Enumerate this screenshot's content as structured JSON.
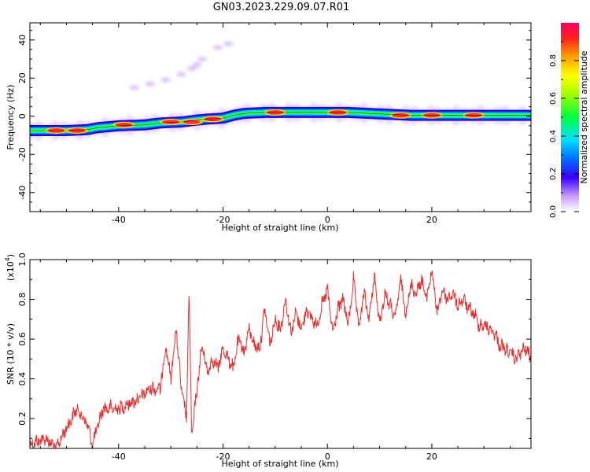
{
  "title": "GN03.2023.229.09.07.R01",
  "chart_data": [
    {
      "type": "heatmap",
      "xlabel": "Height of straight line (km)",
      "ylabel": "Frequency (Hz)",
      "xlim": [
        -57,
        39
      ],
      "ylim": [
        -50,
        49
      ],
      "xticks": [
        -40,
        -20,
        0,
        20
      ],
      "yticks": [
        -40,
        -20,
        0,
        20,
        40
      ],
      "colorbar": {
        "label": "Normalized spectral amplitude",
        "ticks": [
          "0.0",
          "0.2",
          "0.4",
          "0.6",
          "0.8"
        ],
        "range": [
          0,
          1
        ]
      },
      "ridge": {
        "description": "dominant frequency band vs height",
        "x": [
          -57,
          -50,
          -46,
          -44,
          -40,
          -35,
          -32,
          -28,
          -25,
          -23,
          -20,
          -18,
          -16,
          -12,
          -8,
          -4,
          0,
          4,
          8,
          12,
          16,
          20,
          24,
          28,
          32,
          36,
          38
        ],
        "y": [
          -7.5,
          -7.5,
          -7,
          -6,
          -5,
          -4.5,
          -3.5,
          -3,
          -2,
          -1.5,
          -1,
          0.5,
          1.5,
          2,
          2,
          2,
          2,
          2,
          1.5,
          1,
          0.5,
          0.5,
          0.5,
          0.5,
          0.5,
          0.5,
          0.5
        ]
      },
      "harmonic": {
        "x": [
          -37,
          -34,
          -31,
          -28,
          -26,
          -25,
          -24,
          -21,
          -19
        ],
        "y": [
          15,
          17,
          19,
          22,
          25,
          27,
          30,
          36,
          38
        ]
      },
      "hot_spots": [
        {
          "x": -52,
          "y": -7.5,
          "amp": 0.95
        },
        {
          "x": -48,
          "y": -7.5,
          "amp": 0.95
        },
        {
          "x": -39,
          "y": -4.5,
          "amp": 0.95
        },
        {
          "x": -30,
          "y": -3,
          "amp": 0.9
        },
        {
          "x": -26,
          "y": -3,
          "amp": 0.9
        },
        {
          "x": -22,
          "y": -1.5,
          "amp": 1.0
        },
        {
          "x": -10,
          "y": 2,
          "amp": 1.0
        },
        {
          "x": 2,
          "y": 2,
          "amp": 1.0
        },
        {
          "x": 14,
          "y": 0.5,
          "amp": 1.0
        },
        {
          "x": 20,
          "y": 0.5,
          "amp": 0.95
        },
        {
          "x": 28,
          "y": 0.5,
          "amp": 1.0
        }
      ]
    },
    {
      "type": "line",
      "xlabel": "Height of straight line (km)",
      "ylabel": "SNR (10 * v/v)",
      "y_multiplier": "(x10",
      "y_multiplier_exp": "4",
      "y_multiplier_close": ")",
      "xlim": [
        -57,
        39
      ],
      "ylim": [
        0.05,
        1.0
      ],
      "xticks": [
        -40,
        -20,
        0,
        20
      ],
      "yticks": [
        "0.2",
        "0.4",
        "0.6",
        "0.8",
        "1.0"
      ],
      "color": "#e83030",
      "series": [
        {
          "values_envelope": {
            "x": [
              -57,
              -54,
              -52,
              -50,
              -48,
              -46,
              -45,
              -43,
              -40,
              -36,
              -34,
              -32,
              -31,
              -30,
              -29,
              -28,
              -27,
              -26.5,
              -26,
              -25,
              -24,
              -23,
              -22,
              -21,
              -20,
              -19,
              -18,
              -17,
              -16,
              -15,
              -14,
              -13,
              -12,
              -11,
              -10,
              -9,
              -8,
              -7,
              -6,
              -5,
              -4,
              -3,
              -2,
              -1,
              0,
              1,
              2,
              3,
              4,
              5,
              6,
              7,
              8,
              9,
              10,
              11,
              12,
              13,
              14,
              15,
              16,
              17,
              18,
              19,
              20,
              21,
              22,
              23,
              24,
              25,
              26,
              27,
              28,
              29,
              30,
              31,
              32,
              33,
              34,
              35,
              36,
              37,
              38,
              39
            ],
            "y": [
              0.12,
              0.15,
              0.1,
              0.2,
              0.3,
              0.22,
              0.12,
              0.3,
              0.3,
              0.35,
              0.4,
              0.4,
              0.62,
              0.45,
              0.7,
              0.4,
              0.25,
              0.9,
              0.15,
              0.4,
              0.62,
              0.48,
              0.55,
              0.5,
              0.6,
              0.55,
              0.5,
              0.65,
              0.58,
              0.7,
              0.62,
              0.6,
              0.8,
              0.62,
              0.75,
              0.7,
              0.85,
              0.68,
              0.78,
              0.7,
              0.8,
              0.75,
              0.72,
              0.82,
              0.9,
              0.68,
              0.8,
              0.85,
              0.72,
              0.95,
              0.7,
              0.88,
              0.75,
              0.97,
              0.72,
              0.88,
              0.82,
              0.75,
              0.95,
              0.78,
              0.92,
              0.88,
              0.95,
              0.85,
              1.0,
              0.78,
              0.9,
              0.85,
              0.88,
              0.82,
              0.85,
              0.8,
              0.78,
              0.72,
              0.72,
              0.7,
              0.68,
              0.62,
              0.6,
              0.58,
              0.55,
              0.58,
              0.6,
              0.55
            ]
          }
        }
      ]
    }
  ]
}
